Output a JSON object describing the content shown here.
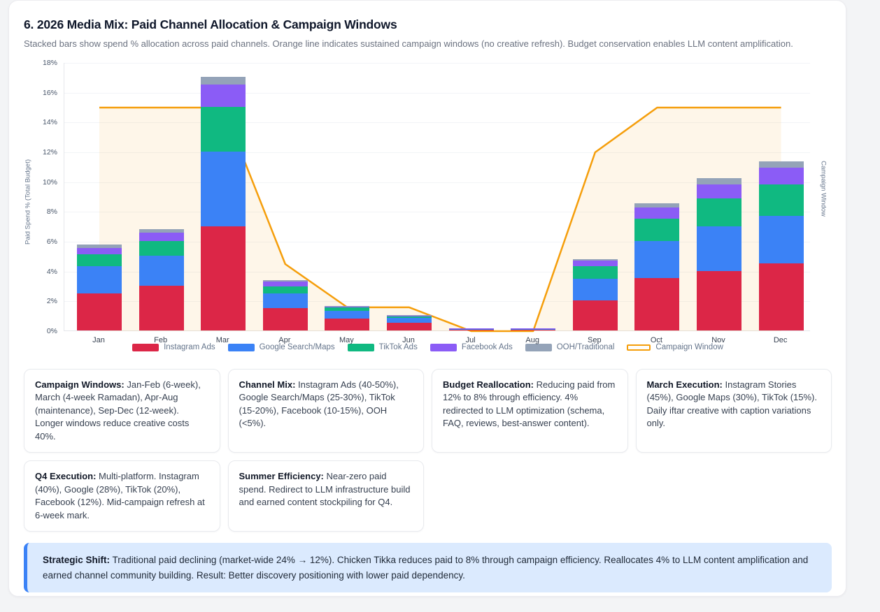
{
  "header": {
    "title": "6. 2026 Media Mix: Paid Channel Allocation & Campaign Windows",
    "subtitle": "Stacked bars show spend % allocation across paid channels. Orange line indicates sustained campaign windows (no creative refresh). Budget conservation enables LLM content amplification."
  },
  "chart_data": {
    "type": "bar",
    "subtype": "stacked-bars-with-line",
    "categories": [
      "Jan",
      "Feb",
      "Mar",
      "Apr",
      "May",
      "Jun",
      "Jul",
      "Aug",
      "Sep",
      "Oct",
      "Nov",
      "Dec"
    ],
    "series": [
      {
        "name": "Instagram Ads",
        "color": "#dc2647",
        "values": [
          2.5,
          3.0,
          7.0,
          1.5,
          0.8,
          0.5,
          0.05,
          0.05,
          2.0,
          3.5,
          4.0,
          4.5
        ]
      },
      {
        "name": "Google Search/Maps",
        "color": "#3b82f6",
        "values": [
          1.8,
          2.0,
          5.0,
          1.0,
          0.5,
          0.35,
          0.03,
          0.03,
          1.45,
          2.5,
          3.0,
          3.2
        ]
      },
      {
        "name": "TikTok Ads",
        "color": "#10b981",
        "values": [
          0.8,
          1.0,
          3.0,
          0.45,
          0.25,
          0.1,
          0.02,
          0.02,
          0.85,
          1.5,
          1.85,
          2.1
        ]
      },
      {
        "name": "Facebook Ads",
        "color": "#8b5cf6",
        "values": [
          0.45,
          0.55,
          1.5,
          0.35,
          0.05,
          0.05,
          0.05,
          0.05,
          0.4,
          0.75,
          0.95,
          1.1
        ]
      },
      {
        "name": "OOH/Traditional",
        "color": "#94a3b8",
        "values": [
          0.2,
          0.25,
          0.5,
          0.1,
          0.05,
          0.05,
          0.0,
          0.0,
          0.1,
          0.3,
          0.4,
          0.45
        ]
      }
    ],
    "line": {
      "name": "Campaign Window",
      "color": "#f59e0b",
      "values": [
        15,
        15,
        15,
        4.5,
        1.6,
        1.6,
        0,
        0,
        12,
        15,
        15,
        15
      ]
    },
    "title": "6. 2026 Media Mix: Paid Channel Allocation & Campaign Windows",
    "xlabel": "",
    "ylabel": "Paid Spend % (Total Budget)",
    "y2label": "Campaign Window",
    "ylim": [
      0,
      18
    ],
    "ytick_step": 2,
    "ytick_suffix": "%",
    "grid": "horizontal",
    "legend_position": "bottom"
  },
  "cards": [
    {
      "lead": "Campaign Windows:",
      "text": "Jan-Feb (6-week), March (4-week Ramadan), Apr-Aug (maintenance), Sep-Dec (12-week). Longer windows reduce creative costs 40%."
    },
    {
      "lead": "Channel Mix:",
      "text": "Instagram Ads (40-50%), Google Search/Maps (25-30%), TikTok (15-20%), Facebook (10-15%), OOH (<5%)."
    },
    {
      "lead": "Budget Reallocation:",
      "text": "Reducing paid from 12% to 8% through efficiency. 4% redirected to LLM optimization (schema, FAQ, reviews, best-answer content)."
    },
    {
      "lead": "March Execution:",
      "text": "Instagram Stories (45%), Google Maps (30%), TikTok (15%). Daily iftar creative with caption variations only."
    },
    {
      "lead": "Q4 Execution:",
      "text": "Multi-platform. Instagram (40%), Google (28%), TikTok (20%), Facebook (12%). Mid-campaign refresh at 6-week mark."
    },
    {
      "lead": "Summer Efficiency:",
      "text": "Near-zero paid spend. Redirect to LLM infrastructure build and earned content stockpiling for Q4."
    }
  ],
  "callout": {
    "lead": "Strategic Shift:",
    "text": "Traditional paid declining (market-wide 24% → 12%). Chicken Tikka reduces paid to 8% through campaign efficiency. Reallocates 4% to LLM content amplification and earned channel community building. Result: Better discovery positioning with lower paid dependency.",
    "accent_color": "#3b82f6",
    "background_color": "#dbeafe"
  }
}
